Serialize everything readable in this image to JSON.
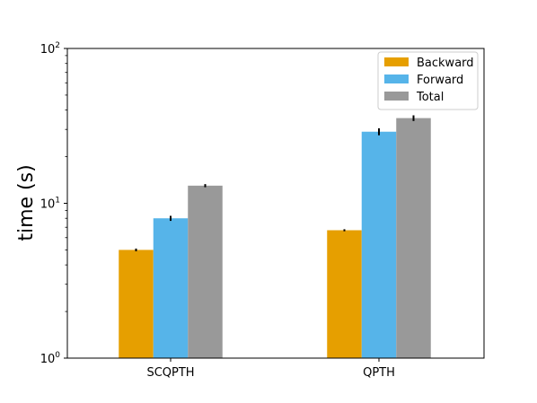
{
  "chart_data": {
    "type": "bar",
    "title": "",
    "xlabel": "",
    "ylabel": "time (s)",
    "yscale": "log",
    "ylim": [
      1,
      100
    ],
    "yticks": [
      {
        "value": 1,
        "base": "10",
        "exp": "0"
      },
      {
        "value": 10,
        "base": "10",
        "exp": "1"
      },
      {
        "value": 100,
        "base": "10",
        "exp": "2"
      }
    ],
    "categories": [
      "SCQPTH",
      "QPTH"
    ],
    "series": [
      {
        "name": "Backward",
        "color": "#E69F00",
        "values": [
          5.0,
          6.7
        ],
        "errors": [
          0.1,
          0.1
        ]
      },
      {
        "name": "Forward",
        "color": "#56B4E9",
        "values": [
          8.0,
          29.0
        ],
        "errors": [
          0.3,
          1.5
        ]
      },
      {
        "name": "Total",
        "color": "#999999",
        "values": [
          13.0,
          35.5
        ],
        "errors": [
          0.3,
          1.5
        ]
      }
    ],
    "legend_position": "top-right",
    "grid": false
  }
}
